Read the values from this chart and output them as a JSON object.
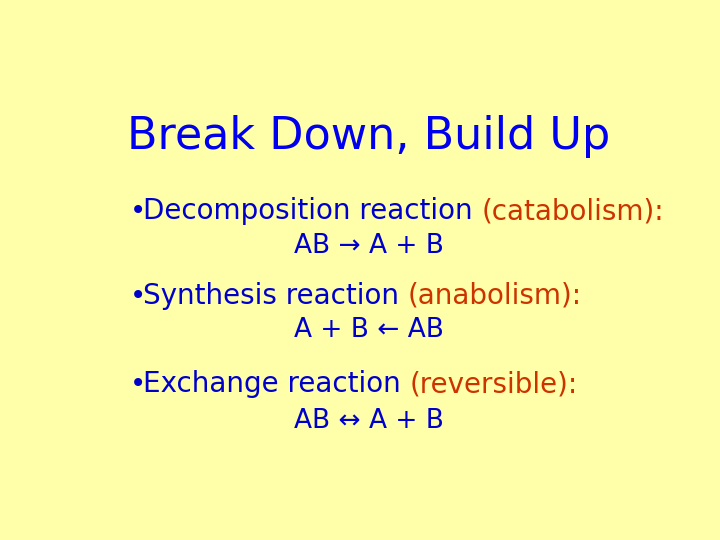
{
  "background_color": "#FFFFAA",
  "title": "Break Down, Build Up",
  "title_color": "#0000EE",
  "title_fontsize": 32,
  "title_font": "Comic Sans MS",
  "bullet_color": "#0000CC",
  "highlight_color": "#CC3300",
  "body_fontsize": 20,
  "equation_fontsize": 19,
  "bullets": [
    {
      "label": "Decomposition reaction ",
      "highlight": "(catabolism):",
      "equation": "AB → A + B"
    },
    {
      "label": "Synthesis reaction ",
      "highlight": "(anabolism):",
      "equation": "A + B ← AB"
    },
    {
      "label": "Exchange reaction ",
      "highlight": "(reversible):",
      "equation": "AB ↔ A + B"
    }
  ]
}
